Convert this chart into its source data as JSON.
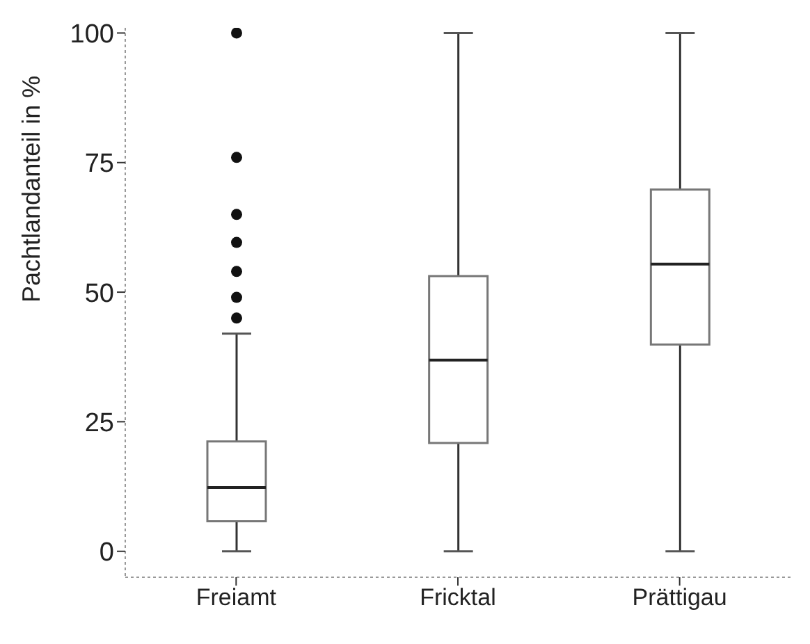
{
  "chart_data": {
    "type": "box",
    "ylabel": "Pachtlandanteil in %",
    "categories": [
      "Freiamt",
      "Fricktal",
      "Prättigau"
    ],
    "boxes": [
      {
        "low": 0,
        "q1": 5.8,
        "median": 12.3,
        "q3": 21.2,
        "high": 42,
        "outliers": [
          45,
          49,
          54,
          59.6,
          65,
          76,
          100
        ]
      },
      {
        "low": 0,
        "q1": 20.9,
        "median": 36.9,
        "q3": 53.1,
        "high": 100
      },
      {
        "low": 0,
        "q1": 39.9,
        "median": 55.4,
        "q3": 69.8,
        "high": 100
      }
    ],
    "ylim": [
      -5,
      101
    ],
    "yticks": [
      0,
      25,
      50,
      75,
      100
    ]
  }
}
